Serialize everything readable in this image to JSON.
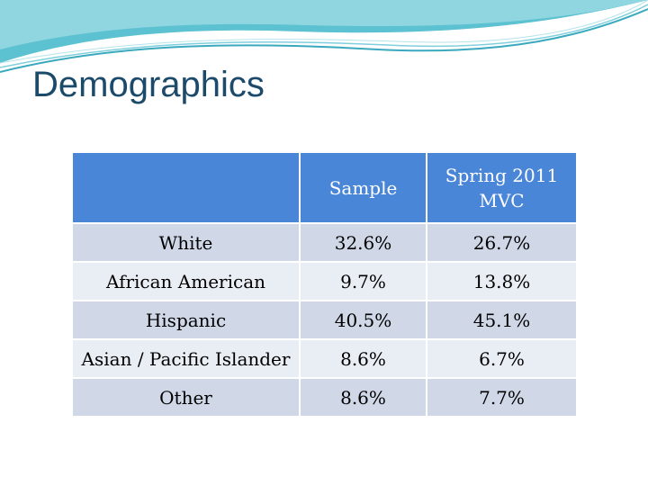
{
  "header": {
    "title": "Demographics"
  },
  "table": {
    "columns": [
      "Sample",
      "Spring 2011 MVC"
    ],
    "rows": [
      [
        "White",
        "32.6%",
        "26.7%"
      ],
      [
        "African American",
        "9.7%",
        "13.8%"
      ],
      [
        "Hispanic",
        "40.5%",
        "45.1%"
      ],
      [
        "Asian / Pacific Islander",
        "8.6%",
        "6.7%"
      ],
      [
        "Other",
        "8.6%",
        "7.7%"
      ]
    ]
  }
}
